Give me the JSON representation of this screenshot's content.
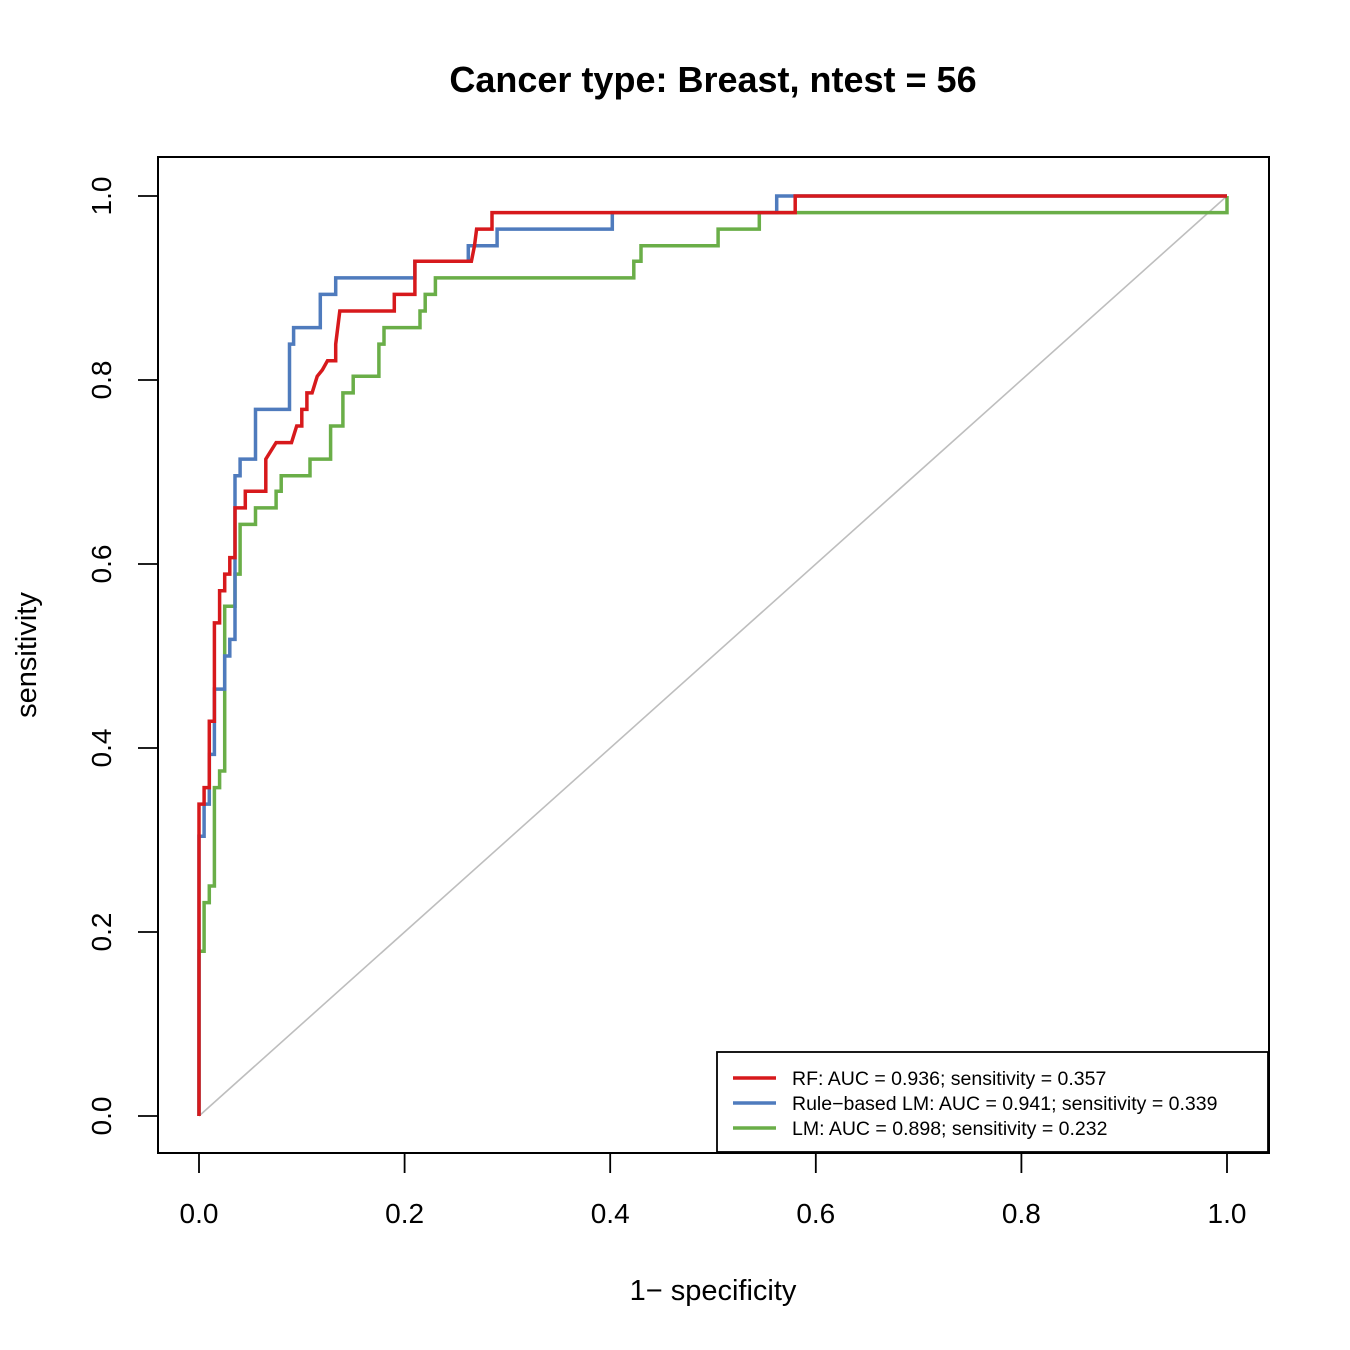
{
  "chart_data": {
    "type": "line",
    "title": "Cancer type: Breast, ntest = 56",
    "xlabel": "1− specificity",
    "ylabel": "sensitivity",
    "xlim": [
      0,
      1
    ],
    "ylim": [
      0,
      1
    ],
    "x_ticks": [
      "0.0",
      "0.2",
      "0.4",
      "0.6",
      "0.8",
      "1.0"
    ],
    "y_ticks": [
      "0.0",
      "0.2",
      "0.4",
      "0.6",
      "0.8",
      "1.0"
    ],
    "grid": false,
    "legend_position": "bottom-right",
    "reference_line": {
      "from": [
        0,
        0
      ],
      "to": [
        1,
        1
      ],
      "color": "#bebebe"
    },
    "series": [
      {
        "name": "RF",
        "legend": "RF: AUC = 0.936; sensitivity = 0.357",
        "color": "#d7191c",
        "points": [
          [
            0,
            0
          ],
          [
            0,
            0.304
          ],
          [
            0,
            0.339
          ],
          [
            0.005,
            0.339
          ],
          [
            0.005,
            0.357
          ],
          [
            0.01,
            0.357
          ],
          [
            0.01,
            0.393
          ],
          [
            0.01,
            0.429
          ],
          [
            0.015,
            0.429
          ],
          [
            0.015,
            0.464
          ],
          [
            0.015,
            0.536
          ],
          [
            0.02,
            0.536
          ],
          [
            0.02,
            0.571
          ],
          [
            0.025,
            0.571
          ],
          [
            0.025,
            0.589
          ],
          [
            0.03,
            0.589
          ],
          [
            0.03,
            0.607
          ],
          [
            0.035,
            0.607
          ],
          [
            0.035,
            0.661
          ],
          [
            0.045,
            0.661
          ],
          [
            0.045,
            0.679
          ],
          [
            0.065,
            0.679
          ],
          [
            0.065,
            0.714
          ],
          [
            0.075,
            0.732
          ],
          [
            0.09,
            0.732
          ],
          [
            0.095,
            0.75
          ],
          [
            0.1,
            0.75
          ],
          [
            0.1,
            0.768
          ],
          [
            0.105,
            0.768
          ],
          [
            0.105,
            0.786
          ],
          [
            0.11,
            0.786
          ],
          [
            0.115,
            0.804
          ],
          [
            0.12,
            0.811
          ],
          [
            0.125,
            0.821
          ],
          [
            0.133,
            0.821
          ],
          [
            0.133,
            0.839
          ],
          [
            0.137,
            0.875
          ],
          [
            0.19,
            0.875
          ],
          [
            0.19,
            0.893
          ],
          [
            0.21,
            0.893
          ],
          [
            0.21,
            0.911
          ],
          [
            0.21,
            0.929
          ],
          [
            0.265,
            0.929
          ],
          [
            0.268,
            0.946
          ],
          [
            0.27,
            0.964
          ],
          [
            0.285,
            0.964
          ],
          [
            0.285,
            0.982
          ],
          [
            0.58,
            0.982
          ],
          [
            0.58,
            1.0
          ],
          [
            1.0,
            1.0
          ]
        ]
      },
      {
        "name": "Rule-based LM",
        "legend": "Rule−based LM: AUC = 0.941; sensitivity = 0.339",
        "color": "#4f7bbd",
        "points": [
          [
            0,
            0
          ],
          [
            0,
            0.179
          ],
          [
            0,
            0.304
          ],
          [
            0.005,
            0.304
          ],
          [
            0.005,
            0.339
          ],
          [
            0.01,
            0.339
          ],
          [
            0.01,
            0.393
          ],
          [
            0.015,
            0.393
          ],
          [
            0.015,
            0.464
          ],
          [
            0.025,
            0.464
          ],
          [
            0.025,
            0.5
          ],
          [
            0.03,
            0.5
          ],
          [
            0.03,
            0.518
          ],
          [
            0.035,
            0.518
          ],
          [
            0.035,
            0.696
          ],
          [
            0.04,
            0.696
          ],
          [
            0.04,
            0.714
          ],
          [
            0.055,
            0.714
          ],
          [
            0.055,
            0.768
          ],
          [
            0.088,
            0.768
          ],
          [
            0.088,
            0.839
          ],
          [
            0.092,
            0.839
          ],
          [
            0.092,
            0.857
          ],
          [
            0.118,
            0.857
          ],
          [
            0.118,
            0.893
          ],
          [
            0.133,
            0.893
          ],
          [
            0.133,
            0.911
          ],
          [
            0.21,
            0.911
          ],
          [
            0.21,
            0.929
          ],
          [
            0.262,
            0.929
          ],
          [
            0.262,
            0.946
          ],
          [
            0.29,
            0.946
          ],
          [
            0.29,
            0.964
          ],
          [
            0.402,
            0.964
          ],
          [
            0.402,
            0.982
          ],
          [
            0.562,
            0.982
          ],
          [
            0.562,
            1.0
          ],
          [
            1.0,
            1.0
          ]
        ]
      },
      {
        "name": "LM",
        "legend": "LM: AUC = 0.898; sensitivity = 0.232",
        "color": "#6aae48",
        "points": [
          [
            0,
            0
          ],
          [
            0,
            0.179
          ],
          [
            0.005,
            0.179
          ],
          [
            0.005,
            0.232
          ],
          [
            0.01,
            0.232
          ],
          [
            0.01,
            0.25
          ],
          [
            0.015,
            0.25
          ],
          [
            0.015,
            0.357
          ],
          [
            0.02,
            0.357
          ],
          [
            0.02,
            0.375
          ],
          [
            0.025,
            0.375
          ],
          [
            0.025,
            0.5
          ],
          [
            0.025,
            0.554
          ],
          [
            0.035,
            0.554
          ],
          [
            0.035,
            0.589
          ],
          [
            0.04,
            0.589
          ],
          [
            0.04,
            0.643
          ],
          [
            0.055,
            0.643
          ],
          [
            0.055,
            0.661
          ],
          [
            0.075,
            0.661
          ],
          [
            0.075,
            0.679
          ],
          [
            0.08,
            0.679
          ],
          [
            0.08,
            0.696
          ],
          [
            0.108,
            0.696
          ],
          [
            0.108,
            0.714
          ],
          [
            0.128,
            0.714
          ],
          [
            0.128,
            0.75
          ],
          [
            0.14,
            0.75
          ],
          [
            0.14,
            0.786
          ],
          [
            0.15,
            0.786
          ],
          [
            0.15,
            0.804
          ],
          [
            0.175,
            0.804
          ],
          [
            0.175,
            0.839
          ],
          [
            0.18,
            0.839
          ],
          [
            0.18,
            0.857
          ],
          [
            0.215,
            0.857
          ],
          [
            0.215,
            0.875
          ],
          [
            0.22,
            0.875
          ],
          [
            0.22,
            0.893
          ],
          [
            0.23,
            0.893
          ],
          [
            0.23,
            0.911
          ],
          [
            0.423,
            0.911
          ],
          [
            0.423,
            0.929
          ],
          [
            0.43,
            0.929
          ],
          [
            0.43,
            0.946
          ],
          [
            0.505,
            0.946
          ],
          [
            0.505,
            0.964
          ],
          [
            0.545,
            0.964
          ],
          [
            0.545,
            0.982
          ],
          [
            1.0,
            0.982
          ],
          [
            1.0,
            1.0
          ]
        ]
      }
    ]
  }
}
